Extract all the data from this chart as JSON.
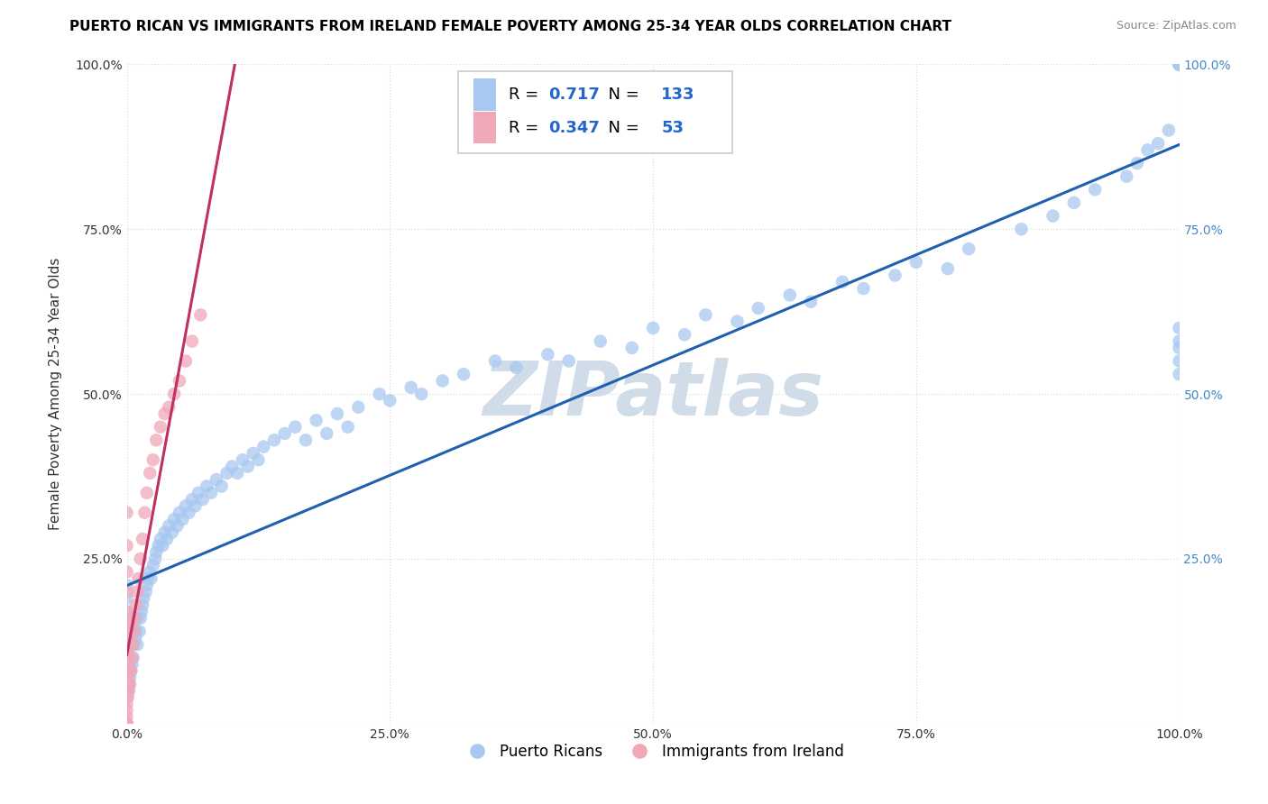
{
  "title": "PUERTO RICAN VS IMMIGRANTS FROM IRELAND FEMALE POVERTY AMONG 25-34 YEAR OLDS CORRELATION CHART",
  "source": "Source: ZipAtlas.com",
  "ylabel": "Female Poverty Among 25-34 Year Olds",
  "xlim": [
    0,
    1.0
  ],
  "ylim": [
    0,
    1.0
  ],
  "xticks": [
    0.0,
    0.25,
    0.5,
    0.75,
    1.0
  ],
  "xticklabels": [
    "0.0%",
    "25.0%",
    "50.0%",
    "75.0%",
    "100.0%"
  ],
  "yticks": [
    0.0,
    0.25,
    0.5,
    0.75,
    1.0
  ],
  "yticklabels_left": [
    "",
    "25.0%",
    "50.0%",
    "75.0%",
    "100.0%"
  ],
  "yticklabels_right": [
    "",
    "25.0%",
    "50.0%",
    "75.0%",
    "100.0%"
  ],
  "pr_R": 0.717,
  "pr_N": 133,
  "ir_R": 0.347,
  "ir_N": 53,
  "pr_color": "#a8c8f0",
  "ir_color": "#f0a8b8",
  "pr_line_color": "#2060b0",
  "ir_line_color": "#c03060",
  "background_color": "#ffffff",
  "grid_color": "#dddddd",
  "title_fontsize": 11,
  "axis_label_fontsize": 11,
  "tick_fontsize": 10,
  "right_tick_color": "#4488cc",
  "watermark_color": "#d0dce8",
  "pr_scatter_x": [
    0.0,
    0.0,
    0.0,
    0.0,
    0.0,
    0.0,
    0.0,
    0.0,
    0.0,
    0.0,
    0.0,
    0.0,
    0.0,
    0.0,
    0.0,
    0.001,
    0.001,
    0.001,
    0.001,
    0.002,
    0.002,
    0.002,
    0.003,
    0.003,
    0.003,
    0.004,
    0.004,
    0.005,
    0.005,
    0.006,
    0.006,
    0.007,
    0.008,
    0.009,
    0.01,
    0.01,
    0.012,
    0.013,
    0.014,
    0.015,
    0.016,
    0.018,
    0.019,
    0.02,
    0.022,
    0.023,
    0.025,
    0.027,
    0.028,
    0.03,
    0.032,
    0.034,
    0.036,
    0.038,
    0.04,
    0.043,
    0.045,
    0.048,
    0.05,
    0.053,
    0.056,
    0.059,
    0.062,
    0.065,
    0.068,
    0.072,
    0.076,
    0.08,
    0.085,
    0.09,
    0.095,
    0.1,
    0.105,
    0.11,
    0.115,
    0.12,
    0.125,
    0.13,
    0.14,
    0.15,
    0.16,
    0.17,
    0.18,
    0.19,
    0.2,
    0.21,
    0.22,
    0.24,
    0.25,
    0.27,
    0.28,
    0.3,
    0.32,
    0.35,
    0.37,
    0.4,
    0.42,
    0.45,
    0.48,
    0.5,
    0.53,
    0.55,
    0.58,
    0.6,
    0.63,
    0.65,
    0.68,
    0.7,
    0.73,
    0.75,
    0.78,
    0.8,
    0.85,
    0.88,
    0.9,
    0.92,
    0.95,
    0.96,
    0.97,
    0.98,
    0.99,
    1.0,
    1.0,
    1.0,
    1.0,
    1.0,
    1.0,
    1.0,
    1.0,
    1.0,
    1.0,
    1.0,
    1.0
  ],
  "pr_scatter_y": [
    0.04,
    0.05,
    0.06,
    0.06,
    0.07,
    0.08,
    0.09,
    0.1,
    0.11,
    0.12,
    0.13,
    0.15,
    0.17,
    0.19,
    0.21,
    0.05,
    0.07,
    0.1,
    0.13,
    0.06,
    0.09,
    0.13,
    0.07,
    0.1,
    0.14,
    0.08,
    0.12,
    0.09,
    0.14,
    0.1,
    0.15,
    0.12,
    0.13,
    0.14,
    0.12,
    0.16,
    0.14,
    0.16,
    0.17,
    0.18,
    0.19,
    0.2,
    0.21,
    0.22,
    0.23,
    0.22,
    0.24,
    0.25,
    0.26,
    0.27,
    0.28,
    0.27,
    0.29,
    0.28,
    0.3,
    0.29,
    0.31,
    0.3,
    0.32,
    0.31,
    0.33,
    0.32,
    0.34,
    0.33,
    0.35,
    0.34,
    0.36,
    0.35,
    0.37,
    0.36,
    0.38,
    0.39,
    0.38,
    0.4,
    0.39,
    0.41,
    0.4,
    0.42,
    0.43,
    0.44,
    0.45,
    0.43,
    0.46,
    0.44,
    0.47,
    0.45,
    0.48,
    0.5,
    0.49,
    0.51,
    0.5,
    0.52,
    0.53,
    0.55,
    0.54,
    0.56,
    0.55,
    0.58,
    0.57,
    0.6,
    0.59,
    0.62,
    0.61,
    0.63,
    0.65,
    0.64,
    0.67,
    0.66,
    0.68,
    0.7,
    0.69,
    0.72,
    0.75,
    0.77,
    0.79,
    0.81,
    0.83,
    0.85,
    0.87,
    0.88,
    0.9,
    0.55,
    0.57,
    0.58,
    0.6,
    1.0,
    1.0,
    1.0,
    1.0,
    1.0,
    1.0,
    1.0,
    0.53
  ],
  "ir_scatter_x": [
    0.0,
    0.0,
    0.0,
    0.0,
    0.0,
    0.0,
    0.0,
    0.0,
    0.0,
    0.0,
    0.0,
    0.0,
    0.0,
    0.0,
    0.0,
    0.0,
    0.0,
    0.0,
    0.0,
    0.0,
    0.001,
    0.001,
    0.001,
    0.001,
    0.002,
    0.002,
    0.003,
    0.003,
    0.004,
    0.004,
    0.005,
    0.005,
    0.006,
    0.007,
    0.008,
    0.009,
    0.01,
    0.011,
    0.013,
    0.015,
    0.017,
    0.019,
    0.022,
    0.025,
    0.028,
    0.032,
    0.036,
    0.04,
    0.045,
    0.05,
    0.056,
    0.062,
    0.07
  ],
  "ir_scatter_y": [
    0.0,
    0.0,
    0.0,
    0.01,
    0.02,
    0.03,
    0.05,
    0.06,
    0.07,
    0.08,
    0.09,
    0.1,
    0.11,
    0.13,
    0.15,
    0.17,
    0.2,
    0.23,
    0.27,
    0.32,
    0.04,
    0.06,
    0.1,
    0.15,
    0.05,
    0.08,
    0.06,
    0.12,
    0.08,
    0.14,
    0.1,
    0.16,
    0.12,
    0.14,
    0.16,
    0.18,
    0.2,
    0.22,
    0.25,
    0.28,
    0.32,
    0.35,
    0.38,
    0.4,
    0.43,
    0.45,
    0.47,
    0.48,
    0.5,
    0.52,
    0.55,
    0.58,
    0.62
  ]
}
